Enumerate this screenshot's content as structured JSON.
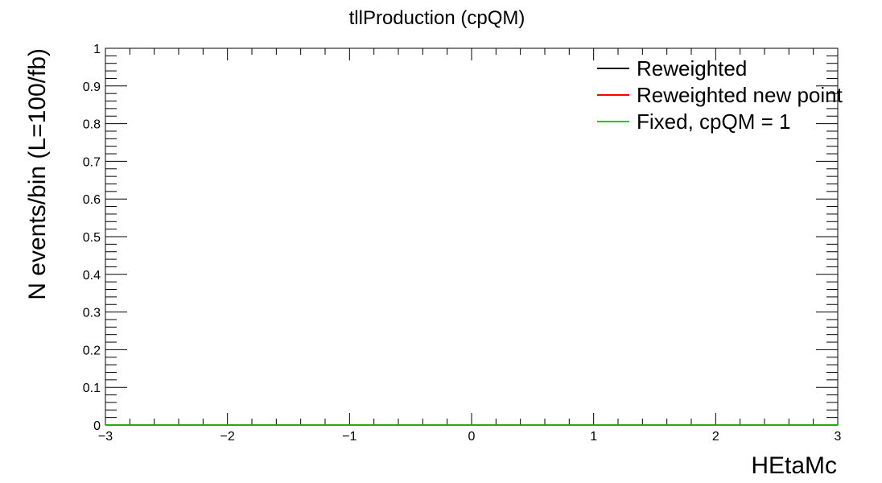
{
  "chart_data": {
    "type": "line",
    "title": "tllProduction (cpQM)",
    "xlabel": "HEtaMc",
    "ylabel": "N events/bin (L=100/fb)",
    "xlim": [
      -3,
      3
    ],
    "ylim": [
      0,
      1
    ],
    "x_ticks": [
      "−3",
      "−2",
      "−1",
      "0",
      "1",
      "2",
      "3"
    ],
    "y_ticks": [
      "0",
      "0.1",
      "0.2",
      "0.3",
      "0.4",
      "0.5",
      "0.6",
      "0.7",
      "0.8",
      "0.9",
      "1"
    ],
    "x_tick_values": [
      -3,
      -2,
      -1,
      0,
      1,
      2,
      3
    ],
    "y_tick_values": [
      0,
      0.1,
      0.2,
      0.3,
      0.4,
      0.5,
      0.6,
      0.7,
      0.8,
      0.9,
      1
    ],
    "legend_position": "top-right",
    "grid": false,
    "series": [
      {
        "name": "Reweighted",
        "color": "#000000",
        "x": [
          -3,
          3
        ],
        "y": [
          0,
          0
        ]
      },
      {
        "name": "Reweighted new point",
        "color": "#ff0000",
        "x": [
          -3,
          3
        ],
        "y": [
          0,
          0
        ]
      },
      {
        "name": "Fixed, cpQM = 1",
        "color": "#00cc00",
        "x": [
          -3,
          3
        ],
        "y": [
          0,
          0
        ]
      }
    ]
  }
}
